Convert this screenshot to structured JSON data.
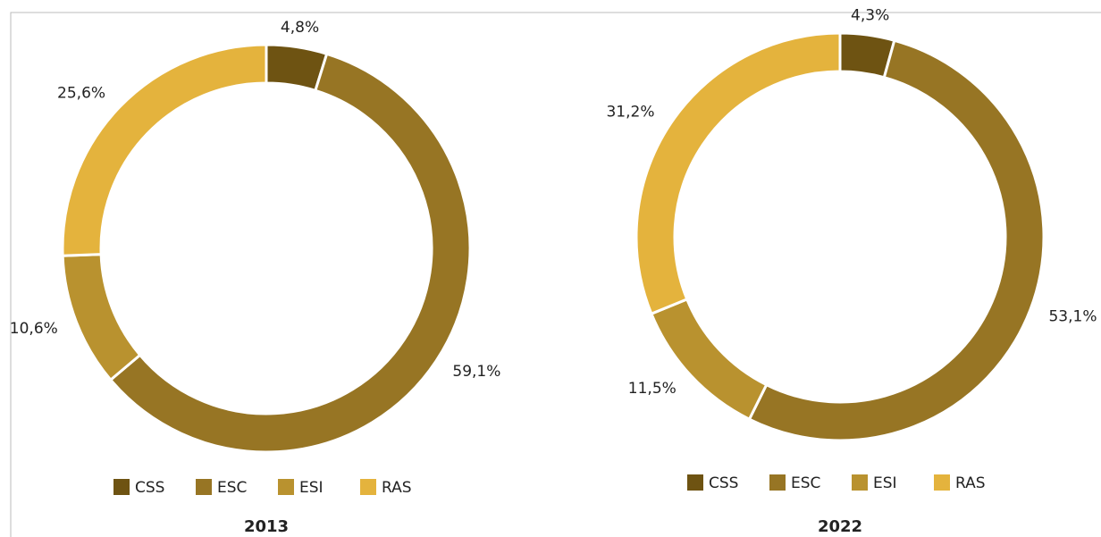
{
  "chart_data": [
    {
      "type": "donut",
      "title": "2013",
      "categories": [
        "CSS",
        "ESC",
        "ESI",
        "RAS"
      ],
      "values": [
        4.8,
        59.1,
        10.6,
        25.6
      ],
      "value_labels": [
        "4,8%",
        "59,1%",
        "10,6%",
        "25,6%"
      ],
      "colors": [
        "#6e5312",
        "#977524",
        "#b9922f",
        "#e4b33d"
      ],
      "legend": "bottom"
    },
    {
      "type": "donut",
      "title": "2022",
      "categories": [
        "CSS",
        "ESC",
        "ESI",
        "RAS"
      ],
      "values": [
        4.3,
        53.1,
        11.5,
        31.2
      ],
      "value_labels": [
        "4,3%",
        "53,1%",
        "11,5%",
        "31,2%"
      ],
      "colors": [
        "#6e5312",
        "#977524",
        "#b9922f",
        "#e4b33d"
      ],
      "legend": "bottom"
    }
  ]
}
